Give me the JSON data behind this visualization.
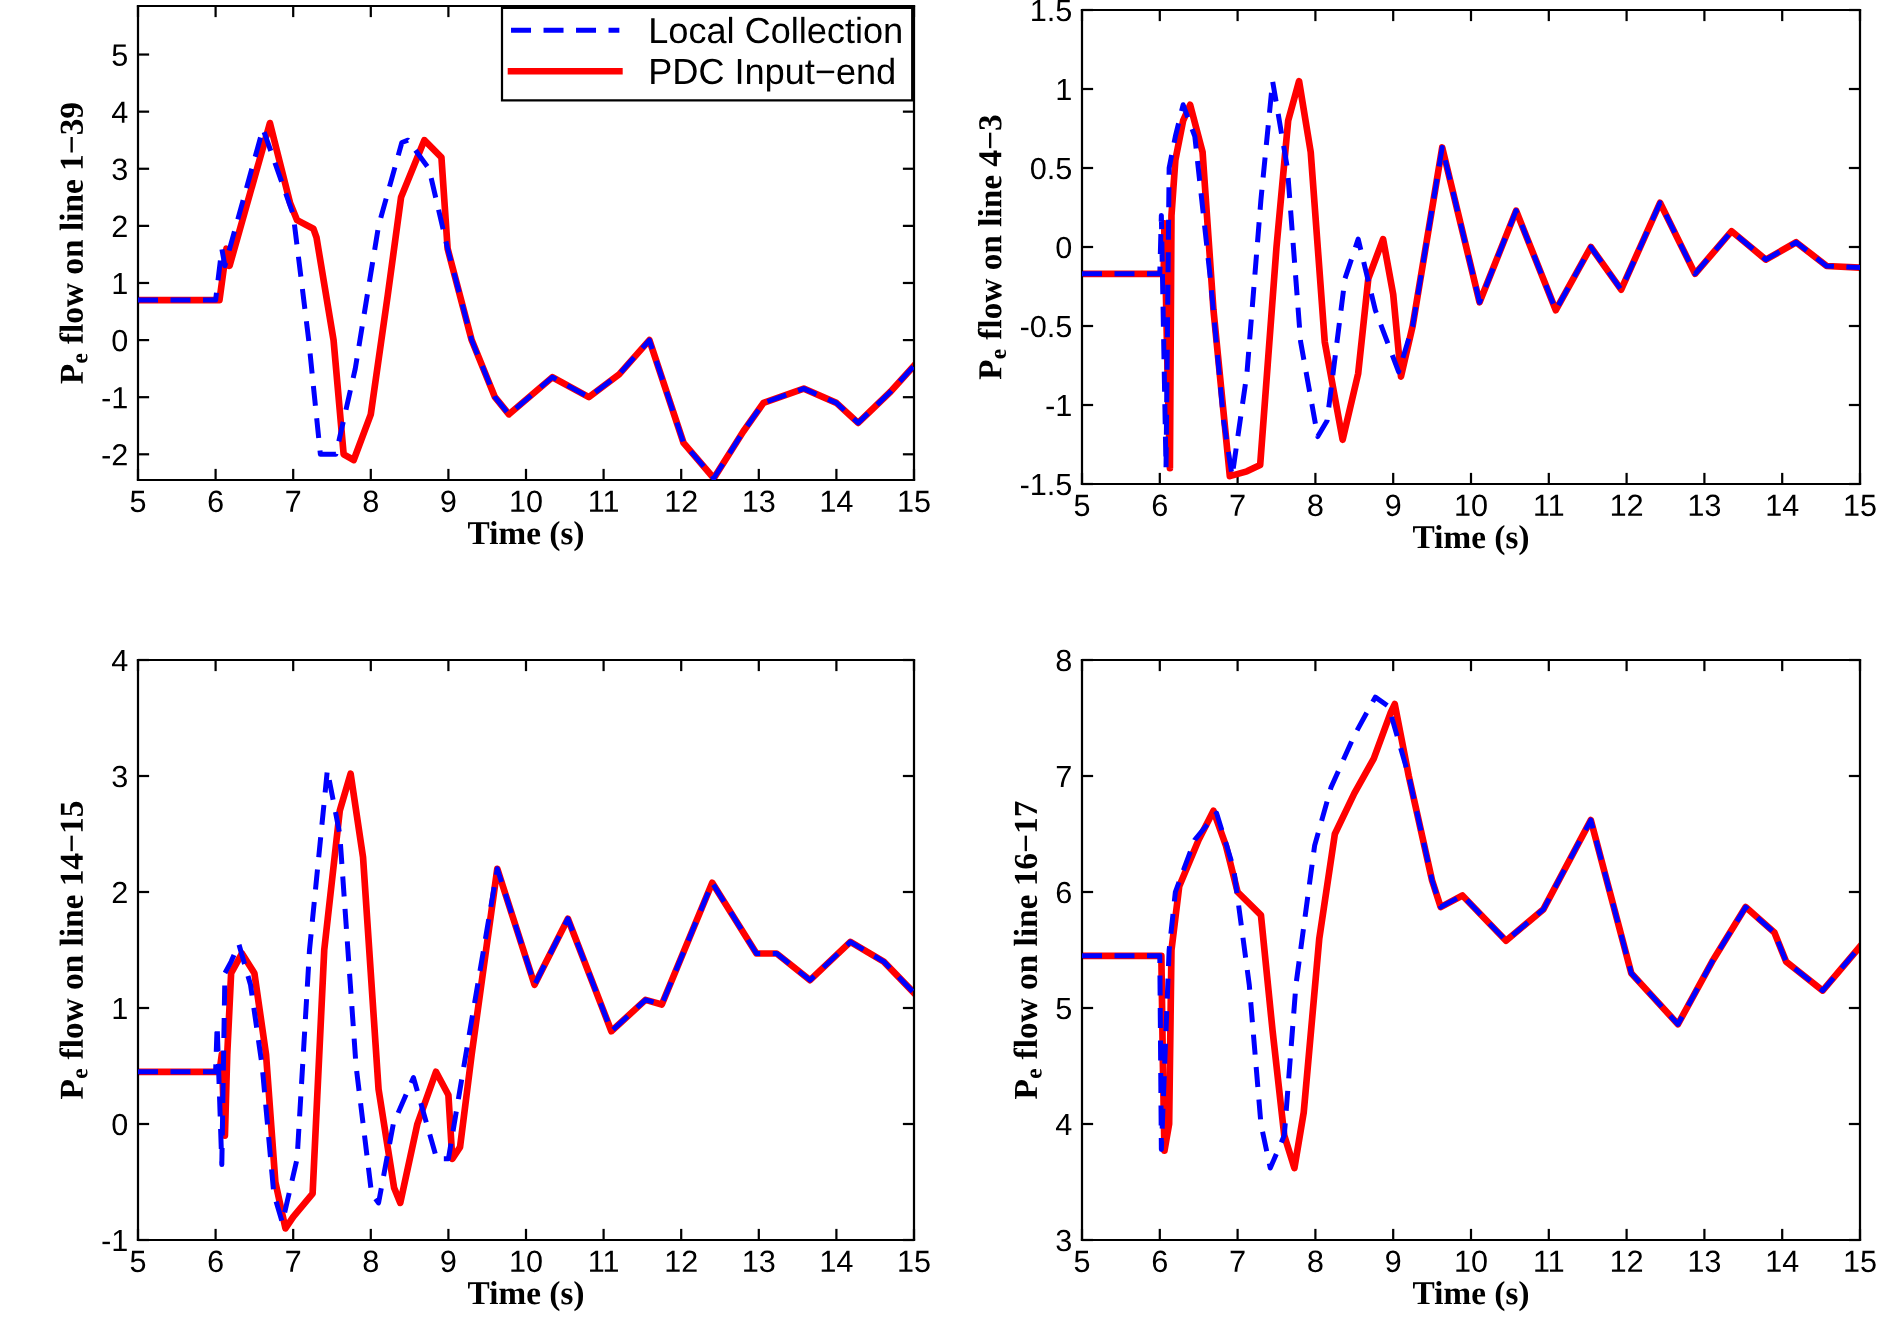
{
  "chart_data": [
    {
      "type": "line",
      "xlabel": "Time (s)",
      "ylabel": "P$_{e}$ flow on line 1−39",
      "xlim": [
        5,
        15
      ],
      "xticks": [
        5,
        6,
        7,
        8,
        9,
        10,
        11,
        12,
        13,
        14,
        15
      ],
      "ylim": [
        -2.45,
        5.85
      ],
      "yticks": [
        -2,
        -1,
        0,
        1,
        2,
        3,
        4,
        5
      ],
      "legend": "top right",
      "grid": false,
      "series": [
        {
          "name": "Local Collection",
          "color": "#0000ff",
          "line_style": "dashed",
          "x": [
            5.0,
            6.0,
            6.08,
            6.12,
            6.61,
            7.0,
            7.2,
            7.35,
            7.55,
            7.8,
            8.1,
            8.4,
            8.48,
            8.75,
            8.99,
            9.3,
            9.6,
            9.78,
            10.34,
            10.81,
            11.2,
            11.59,
            12.03,
            12.42,
            12.8,
            13.06,
            13.58,
            14.0,
            14.28,
            14.7,
            15.0
          ],
          "values": [
            0.7,
            0.7,
            1.6,
            1.3,
            3.7,
            2.2,
            0.0,
            -2.0,
            -2.0,
            -0.5,
            2.0,
            3.46,
            3.5,
            3.0,
            1.6,
            0.0,
            -1.0,
            -1.3,
            -0.65,
            -1.0,
            -0.6,
            0.0,
            -1.8,
            -2.42,
            -1.6,
            -1.1,
            -0.85,
            -1.1,
            -1.45,
            -0.9,
            -0.45
          ]
        },
        {
          "name": "PDC Input−end",
          "color": "#ff0000",
          "line_style": "solid",
          "x": [
            5.0,
            6.05,
            6.14,
            6.18,
            6.7,
            6.96,
            7.05,
            7.26,
            7.3,
            7.52,
            7.65,
            7.78,
            8.0,
            8.22,
            8.39,
            8.69,
            8.91,
            8.99,
            9.3,
            9.6,
            9.78,
            10.34,
            10.81,
            11.2,
            11.59,
            12.03,
            12.42,
            12.8,
            13.06,
            13.58,
            14.0,
            14.28,
            14.7,
            15.0
          ],
          "values": [
            0.7,
            0.7,
            1.6,
            1.3,
            3.8,
            2.4,
            2.1,
            1.95,
            1.8,
            0.0,
            -2.0,
            -2.1,
            -1.3,
            0.8,
            2.5,
            3.5,
            3.2,
            1.6,
            0.0,
            -1.0,
            -1.3,
            -0.65,
            -1.0,
            -0.6,
            0.0,
            -1.8,
            -2.42,
            -1.6,
            -1.1,
            -0.85,
            -1.1,
            -1.45,
            -0.9,
            -0.45
          ]
        }
      ]
    },
    {
      "type": "line",
      "xlabel": "Time (s)",
      "ylabel": "P$_{e}$ flow on line 4−3",
      "xlim": [
        5,
        15
      ],
      "xticks": [
        5,
        6,
        7,
        8,
        9,
        10,
        11,
        12,
        13,
        14,
        15
      ],
      "ylim": [
        -1.5,
        1.5
      ],
      "yticks": [
        -1.5,
        -1,
        -0.5,
        0,
        0.5,
        1,
        1.5
      ],
      "grid": false,
      "series": [
        {
          "color": "#0000ff",
          "line_style": "dashed",
          "x": [
            5.0,
            6.0,
            6.02,
            6.08,
            6.12,
            6.2,
            6.3,
            6.45,
            6.65,
            6.82,
            6.93,
            7.12,
            7.3,
            7.45,
            7.64,
            7.81,
            8.03,
            8.15,
            8.38,
            8.55,
            8.77,
            9.07,
            9.25,
            9.63,
            10.11,
            10.58,
            11.09,
            11.54,
            11.93,
            12.43,
            12.88,
            13.35,
            13.79,
            14.18,
            14.57,
            15.0
          ],
          "values": [
            -0.17,
            -0.17,
            0.2,
            -1.4,
            0.5,
            0.7,
            0.9,
            0.7,
            -0.2,
            -1.1,
            -1.45,
            -0.8,
            0.3,
            1.05,
            0.5,
            -0.6,
            -1.2,
            -1.1,
            -0.2,
            0.05,
            -0.4,
            -0.79,
            -0.5,
            0.63,
            -0.35,
            0.23,
            -0.4,
            0.0,
            -0.27,
            0.28,
            -0.17,
            0.1,
            -0.08,
            0.03,
            -0.12,
            -0.13
          ]
        },
        {
          "color": "#ff0000",
          "line_style": "solid",
          "x": [
            5.0,
            6.05,
            6.06,
            6.1,
            6.13,
            6.15,
            6.2,
            6.3,
            6.39,
            6.55,
            6.69,
            6.9,
            7.12,
            7.29,
            7.5,
            7.65,
            7.79,
            7.94,
            8.12,
            8.35,
            8.55,
            8.68,
            8.87,
            9.0,
            9.1,
            9.25,
            9.63,
            10.11,
            10.58,
            11.09,
            11.54,
            11.93,
            12.43,
            12.88,
            13.35,
            13.79,
            14.18,
            14.57,
            15.0
          ],
          "values": [
            -0.17,
            -0.17,
            0.15,
            -0.8,
            -1.4,
            0.2,
            0.55,
            0.8,
            0.9,
            0.6,
            -0.4,
            -1.45,
            -1.42,
            -1.38,
            0.0,
            0.8,
            1.05,
            0.6,
            -0.6,
            -1.22,
            -0.8,
            -0.2,
            0.05,
            -0.3,
            -0.82,
            -0.5,
            0.63,
            -0.35,
            0.23,
            -0.4,
            0.0,
            -0.27,
            0.28,
            -0.17,
            0.1,
            -0.08,
            0.03,
            -0.12,
            -0.13
          ]
        }
      ]
    },
    {
      "type": "line",
      "xlabel": "Time (s)",
      "ylabel": "P$_{e}$ flow on line 14−15",
      "xlim": [
        5,
        15
      ],
      "xticks": [
        5,
        6,
        7,
        8,
        9,
        10,
        11,
        12,
        13,
        14,
        15
      ],
      "ylim": [
        -1,
        4
      ],
      "yticks": [
        -1,
        0,
        1,
        2,
        3,
        4
      ],
      "grid": false,
      "series": [
        {
          "color": "#0000ff",
          "line_style": "dashed",
          "x": [
            5.0,
            6.0,
            6.02,
            6.08,
            6.12,
            6.2,
            6.3,
            6.45,
            6.6,
            6.75,
            6.86,
            7.05,
            7.21,
            7.44,
            7.6,
            7.81,
            8.01,
            8.1,
            8.29,
            8.55,
            8.85,
            9.0,
            9.2,
            9.63,
            10.11,
            10.54,
            11.1,
            11.54,
            11.75,
            12.4,
            12.97,
            13.23,
            13.66,
            14.18,
            14.61,
            15.0
          ],
          "values": [
            0.45,
            0.45,
            0.85,
            -0.35,
            1.3,
            1.4,
            1.55,
            1.2,
            0.5,
            -0.6,
            -0.85,
            -0.3,
            1.5,
            3.05,
            2.5,
            0.5,
            -0.6,
            -0.68,
            0.0,
            0.4,
            -0.3,
            -0.3,
            0.5,
            2.2,
            1.2,
            1.77,
            0.8,
            1.07,
            1.03,
            2.08,
            1.47,
            1.47,
            1.24,
            1.57,
            1.4,
            1.13
          ]
        },
        {
          "color": "#ff0000",
          "line_style": "solid",
          "x": [
            5.0,
            6.05,
            6.08,
            6.1,
            6.12,
            6.15,
            6.2,
            6.34,
            6.5,
            6.65,
            6.77,
            6.9,
            7.0,
            7.25,
            7.4,
            7.6,
            7.74,
            7.9,
            8.1,
            8.3,
            8.38,
            8.6,
            8.84,
            9.0,
            9.05,
            9.15,
            9.3,
            9.63,
            10.11,
            10.54,
            11.1,
            11.54,
            11.75,
            12.4,
            12.97,
            13.23,
            13.66,
            14.18,
            14.61,
            15.0
          ],
          "values": [
            0.45,
            0.45,
            0.6,
            0.2,
            -0.1,
            0.6,
            1.3,
            1.47,
            1.3,
            0.6,
            -0.5,
            -0.9,
            -0.8,
            -0.6,
            1.5,
            2.7,
            3.02,
            2.3,
            0.3,
            -0.55,
            -0.68,
            0.0,
            0.45,
            0.25,
            -0.3,
            -0.2,
            0.6,
            2.2,
            1.2,
            1.77,
            0.8,
            1.07,
            1.03,
            2.08,
            1.47,
            1.47,
            1.24,
            1.57,
            1.4,
            1.13
          ]
        }
      ]
    },
    {
      "type": "line",
      "xlabel": "Time (s)",
      "ylabel": "P$_{e}$ flow on line 16−17",
      "xlim": [
        5,
        15
      ],
      "xticks": [
        5,
        6,
        7,
        8,
        9,
        10,
        11,
        12,
        13,
        14,
        15
      ],
      "ylim": [
        3,
        8
      ],
      "yticks": [
        3,
        4,
        5,
        6,
        7,
        8
      ],
      "grid": false,
      "series": [
        {
          "color": "#0000ff",
          "line_style": "dashed",
          "x": [
            5.0,
            6.0,
            6.02,
            6.12,
            6.2,
            6.45,
            6.73,
            6.95,
            7.15,
            7.3,
            7.42,
            7.6,
            7.75,
            7.99,
            8.2,
            8.5,
            8.77,
            8.94,
            9.2,
            9.5,
            9.61,
            9.89,
            10.45,
            10.93,
            11.54,
            12.06,
            12.66,
            13.1,
            13.53,
            13.9,
            14.05,
            14.52,
            15.0
          ],
          "values": [
            5.45,
            5.45,
            3.78,
            5.5,
            6.0,
            6.45,
            6.68,
            6.2,
            5.2,
            4.0,
            3.62,
            3.9,
            5.2,
            6.4,
            6.9,
            7.35,
            7.68,
            7.6,
            7.0,
            6.1,
            5.87,
            5.97,
            5.58,
            5.85,
            6.62,
            5.3,
            4.86,
            5.4,
            5.87,
            5.65,
            5.4,
            5.15,
            5.53
          ]
        },
        {
          "color": "#ff0000",
          "line_style": "solid",
          "x": [
            5.0,
            6.02,
            6.04,
            6.06,
            6.12,
            6.15,
            6.25,
            6.5,
            6.69,
            6.85,
            7.0,
            7.3,
            7.45,
            7.6,
            7.73,
            7.85,
            8.05,
            8.25,
            8.5,
            8.75,
            8.97,
            9.02,
            9.2,
            9.5,
            9.61,
            9.89,
            10.45,
            10.93,
            11.54,
            12.06,
            12.66,
            13.1,
            13.53,
            13.9,
            14.05,
            14.52,
            15.0
          ],
          "values": [
            5.45,
            5.45,
            4.5,
            3.77,
            4.0,
            5.5,
            6.05,
            6.45,
            6.7,
            6.4,
            6.0,
            5.8,
            4.8,
            3.9,
            3.62,
            4.1,
            5.6,
            6.5,
            6.85,
            7.15,
            7.55,
            7.62,
            7.0,
            6.1,
            5.87,
            5.97,
            5.58,
            5.85,
            6.62,
            5.3,
            4.86,
            5.4,
            5.87,
            5.65,
            5.4,
            5.15,
            5.53
          ]
        }
      ]
    }
  ]
}
